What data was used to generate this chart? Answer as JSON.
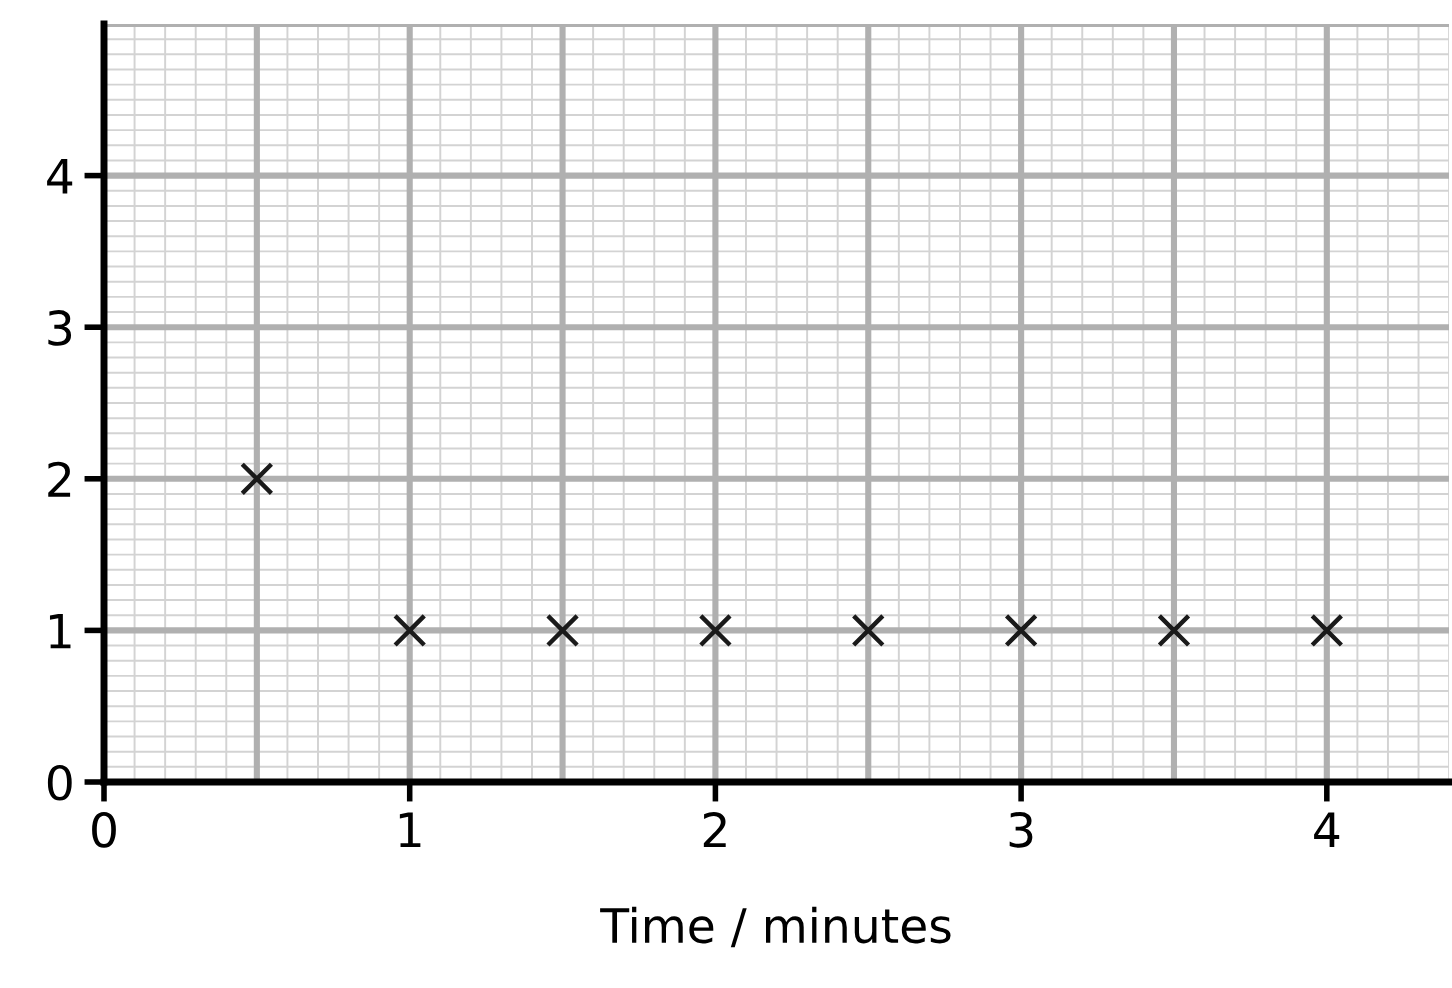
{
  "chart_data": {
    "type": "scatter",
    "xlabel": "Time / minutes",
    "x": [
      0.5,
      1,
      1.5,
      2,
      2.5,
      3,
      3.5,
      4
    ],
    "series": [
      {
        "color": "#1a1a1a",
        "values": [
          2,
          1,
          1,
          1,
          1,
          1,
          1,
          1
        ]
      }
    ],
    "xlim": [
      0,
      4.4
    ],
    "xticks": [
      0,
      1,
      2,
      3,
      4
    ],
    "ylim": [
      0,
      5
    ],
    "yticks": [
      0,
      1,
      2,
      3,
      4
    ],
    "grid": true,
    "marker": "cross"
  }
}
